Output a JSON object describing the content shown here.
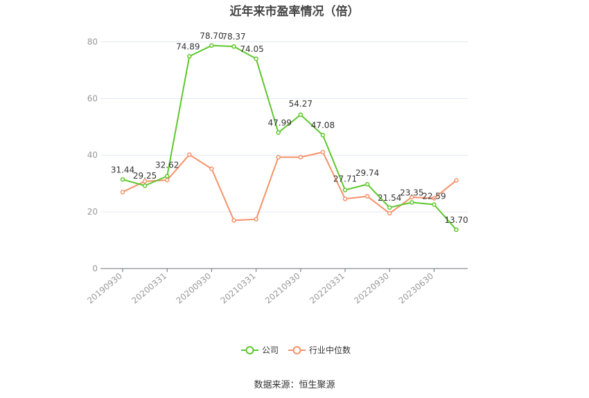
{
  "title": "近年来市盈率情况（倍）",
  "source": "数据来源：恒生聚源",
  "colors": {
    "company": "#5cc72a",
    "industry": "#f5916a",
    "grid": "#e0e6f1",
    "axis": "#6e7079",
    "tick_text": "#999999",
    "label_text": "#333333"
  },
  "chart_data": {
    "type": "line",
    "x_tick_labels": [
      "20190930",
      "20200331",
      "20200930",
      "20210331",
      "20210930",
      "20220331",
      "20220930",
      "20230630"
    ],
    "y_ticks": [
      0,
      20,
      40,
      60,
      80
    ],
    "ylim": [
      0,
      85
    ],
    "grid": true,
    "legend_position": "bottom",
    "series": [
      {
        "name": "公司",
        "values": [
          31.44,
          29.25,
          32.62,
          74.89,
          78.7,
          78.37,
          74.05,
          47.99,
          54.27,
          47.08,
          27.71,
          29.74,
          21.54,
          23.35,
          22.59,
          13.7
        ],
        "labels": [
          "31.44",
          "29.25",
          "32.62",
          "74.89",
          "78.70",
          "78.37",
          "74.05",
          "47.99",
          "54.27",
          "47.08",
          "27.71",
          "29.74",
          "21.54",
          "23.35",
          "22.59",
          "13.70"
        ]
      },
      {
        "name": "行业中位数",
        "values": [
          27.0,
          30.8,
          31.2,
          40.2,
          35.2,
          17.0,
          17.4,
          39.3,
          39.3,
          41.1,
          24.6,
          25.5,
          19.5,
          25.2,
          24.8,
          31.1
        ]
      }
    ]
  }
}
